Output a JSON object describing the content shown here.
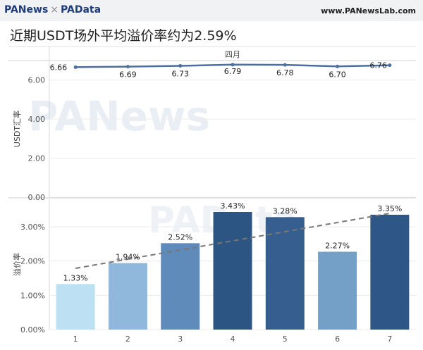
{
  "header": {
    "brand_left": "PANews",
    "brand_sep": "×",
    "brand_right": "PAData",
    "site": "www.PANewsLab.com"
  },
  "watermarks": {
    "top": "PANews",
    "bottom": "PAData"
  },
  "chart_data": {
    "type": "bar",
    "title": "近期USDT场外平均溢价率约为2.59%",
    "categories": [
      "1",
      "2",
      "3",
      "4",
      "5",
      "6",
      "7"
    ],
    "top_panel": {
      "type": "line",
      "header": "四月",
      "ylabel": "USDT汇率",
      "ylim": [
        0,
        7
      ],
      "yticks": [
        "0.00",
        "2.00",
        "4.00",
        "6.00"
      ],
      "series": [
        {
          "values": [
            6.66,
            6.69,
            6.73,
            6.79,
            6.78,
            6.7,
            6.76
          ]
        }
      ],
      "data_labels": [
        "6.66",
        "6.69",
        "6.73",
        "6.79",
        "6.78",
        "6.70",
        "6.76"
      ],
      "color": "#4a6fa0"
    },
    "bottom_panel": {
      "type": "bar",
      "ylabel": "溢价率",
      "ylim": [
        0,
        3.8
      ],
      "yticks": [
        "0.00%",
        "1.00%",
        "2.00%",
        "3.00%"
      ],
      "series": [
        {
          "values": [
            1.33,
            1.94,
            2.52,
            3.43,
            3.28,
            2.27,
            3.35
          ]
        }
      ],
      "data_labels": [
        "1.33%",
        "1.94%",
        "2.52%",
        "3.43%",
        "3.28%",
        "2.27%",
        "3.35%"
      ],
      "bar_colors": [
        "#bde0f2",
        "#8fb8dc",
        "#5f8bbb",
        "#2c5584",
        "#365f8f",
        "#74a0c8",
        "#2e5686"
      ],
      "trendline": {
        "style": "dashed",
        "color": "#777777"
      }
    },
    "grid": true
  }
}
